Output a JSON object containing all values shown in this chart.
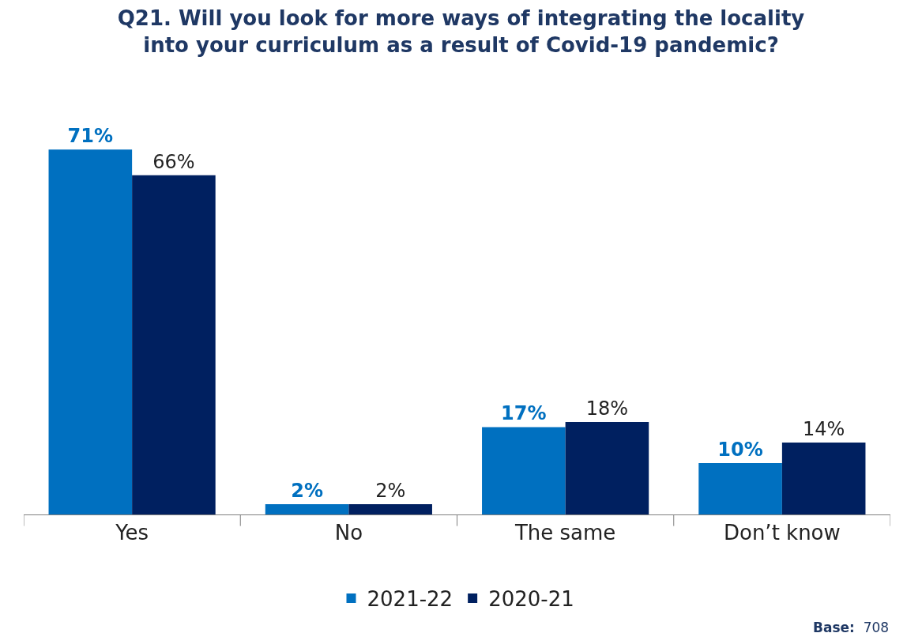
{
  "chart_data": {
    "type": "bar",
    "title": "Q21. Will you look for more ways of integrating the locality into your curriculum as a result of Covid-19 pandemic?",
    "categories": [
      "Yes",
      "No",
      "The same",
      "Don’t know"
    ],
    "series": [
      {
        "name": "2021-22",
        "color": "#0070c0",
        "values": [
          71,
          2,
          17,
          10
        ],
        "value_labels": [
          "71%",
          "2%",
          "17%",
          "10%"
        ]
      },
      {
        "name": "2020-21",
        "color": "#002060",
        "values": [
          66,
          2,
          18,
          14
        ],
        "value_labels": [
          "66%",
          "2%",
          "18%",
          "14%"
        ]
      }
    ],
    "annotations": [
      "Base:  708"
    ],
    "legend": "bottom"
  }
}
